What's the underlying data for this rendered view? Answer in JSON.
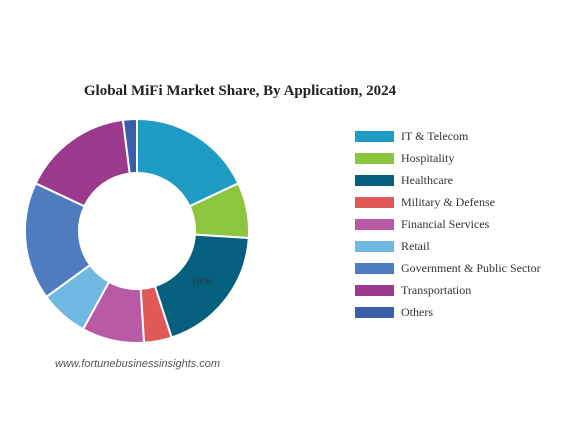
{
  "chart_data": {
    "type": "pie",
    "title": "Global MiFi Market Share, By Application, 2024",
    "categories": [
      "IT & Telecom",
      "Hospitality",
      "Healthcare",
      "Military & Defense",
      "Financial Services",
      "Retail",
      "Government & Public Sector",
      "Transportation",
      "Others"
    ],
    "values": [
      18,
      8,
      19,
      4,
      9,
      7,
      17,
      16,
      2
    ],
    "colors": [
      "#1f9bc4",
      "#8cc63f",
      "#05607f",
      "#e05858",
      "#b85aa6",
      "#6fb8e2",
      "#4f7bbf",
      "#9b3a8d",
      "#3b5ea8"
    ],
    "data_labels": [
      {
        "category": "Healthcare",
        "text": "19%"
      }
    ],
    "donut": true,
    "legend_position": "right"
  },
  "source": "www.fortunebusinessinsights.com"
}
